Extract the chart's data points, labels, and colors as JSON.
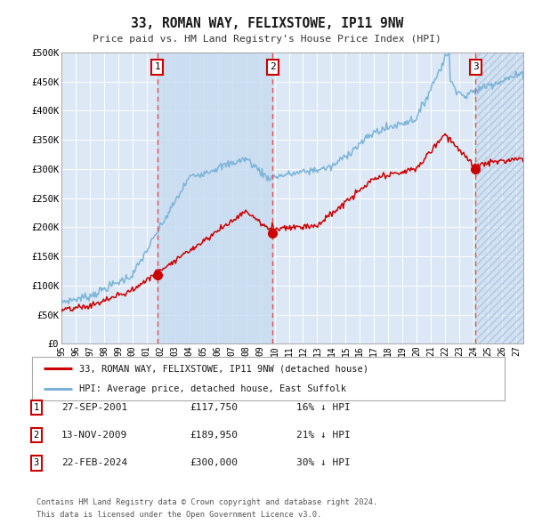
{
  "title": "33, ROMAN WAY, FELIXSTOWE, IP11 9NW",
  "subtitle": "Price paid vs. HM Land Registry's House Price Index (HPI)",
  "ylim": [
    0,
    500000
  ],
  "yticks": [
    0,
    50000,
    100000,
    150000,
    200000,
    250000,
    300000,
    350000,
    400000,
    450000,
    500000
  ],
  "ytick_labels": [
    "£0",
    "£50K",
    "£100K",
    "£150K",
    "£200K",
    "£250K",
    "£300K",
    "£350K",
    "£400K",
    "£450K",
    "£500K"
  ],
  "xstart": 1995.0,
  "xend": 2027.5,
  "xtick_years": [
    1995,
    1996,
    1997,
    1998,
    1999,
    2000,
    2001,
    2002,
    2003,
    2004,
    2005,
    2006,
    2007,
    2008,
    2009,
    2010,
    2011,
    2012,
    2013,
    2014,
    2015,
    2016,
    2017,
    2018,
    2019,
    2020,
    2021,
    2022,
    2023,
    2024,
    2025,
    2026,
    2027
  ],
  "hpi_color": "#7ab4d8",
  "price_color": "#cc0000",
  "sale1_x": 2001.74,
  "sale1_y": 117750,
  "sale2_x": 2009.87,
  "sale2_y": 189950,
  "sale3_x": 2024.14,
  "sale3_y": 300000,
  "legend_entries": [
    "33, ROMAN WAY, FELIXSTOWE, IP11 9NW (detached house)",
    "HPI: Average price, detached house, East Suffolk"
  ],
  "table_rows": [
    [
      "1",
      "27-SEP-2001",
      "£117,750",
      "16% ↓ HPI"
    ],
    [
      "2",
      "13-NOV-2009",
      "£189,950",
      "21% ↓ HPI"
    ],
    [
      "3",
      "22-FEB-2024",
      "£300,000",
      "30% ↓ HPI"
    ]
  ],
  "footnote1": "Contains HM Land Registry data © Crown copyright and database right 2024.",
  "footnote2": "This data is licensed under the Open Government Licence v3.0.",
  "bg_color": "#ffffff",
  "plot_bg_color": "#dce8f5",
  "grid_color": "#ffffff",
  "dashed_line_color": "#e05050",
  "shaded_fill_color": "#c8dcf0",
  "hatch_color": "#b0c8e0"
}
